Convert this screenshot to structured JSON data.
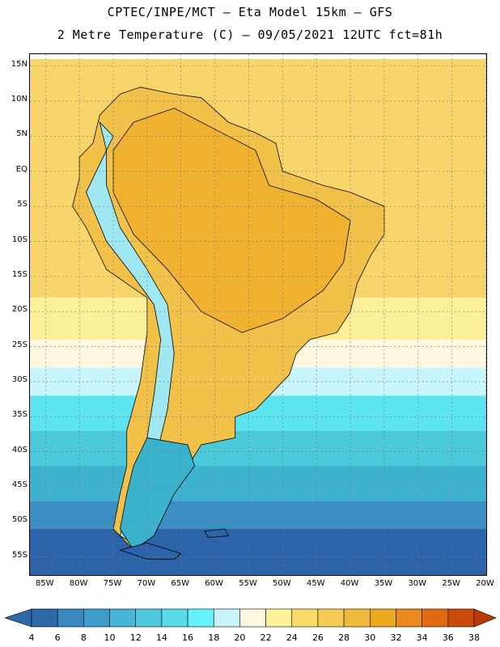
{
  "header": {
    "line1": "CPTEC/INPE/MCT –  Eta Model 15km – GFS",
    "line2": "2 Metre Temperature (C) – 09/05/2021 12UTC fct=81h"
  },
  "map": {
    "lat_labels": [
      "15N",
      "10N",
      "5N",
      "EQ",
      "5S",
      "10S",
      "15S",
      "20S",
      "25S",
      "30S",
      "35S",
      "40S",
      "45S",
      "50S",
      "55S"
    ],
    "lon_labels": [
      "85W",
      "80W",
      "75W",
      "70W",
      "65W",
      "60W",
      "55W",
      "50W",
      "45W",
      "40W",
      "35W",
      "30W",
      "25W",
      "20W"
    ],
    "ocean_bands": [
      {
        "lat_from": 16,
        "lat_to": -18,
        "color": "#f7d56a"
      },
      {
        "lat_from": -18,
        "lat_to": -24,
        "color": "#fcef9a"
      },
      {
        "lat_from": -24,
        "lat_to": -28,
        "color": "#fff8e0"
      },
      {
        "lat_from": -28,
        "lat_to": -32,
        "color": "#c8f4fb"
      },
      {
        "lat_from": -32,
        "lat_to": -37,
        "color": "#5ce5f0"
      },
      {
        "lat_from": -37,
        "lat_to": -42,
        "color": "#4cc9da"
      },
      {
        "lat_from": -42,
        "lat_to": -47,
        "color": "#3eb3cf"
      },
      {
        "lat_from": -47,
        "lat_to": -51,
        "color": "#3b8fc2"
      },
      {
        "lat_from": -51,
        "lat_to": -58,
        "color": "#2d63a8"
      }
    ],
    "colors": {
      "land_hot": "#f0b030",
      "land_warm": "#f2c14a",
      "andes_cool": "#9fe8f2",
      "patagonia": "#3bb2cc",
      "border": "#000000"
    }
  },
  "colorbar": {
    "labels": [
      "4",
      "6",
      "8",
      "10",
      "12",
      "14",
      "16",
      "18",
      "20",
      "22",
      "24",
      "26",
      "28",
      "30",
      "32",
      "34",
      "36",
      "38"
    ],
    "colors": [
      "#2e6aa8",
      "#3a86bf",
      "#3f9dcc",
      "#47b5d6",
      "#52c8de",
      "#5adbe8",
      "#66f2fa",
      "#c9f4fb",
      "#fff8e2",
      "#fdf29a",
      "#f8dd6a",
      "#f3cb55",
      "#efb93c",
      "#ecaa1f",
      "#e88a1f",
      "#e06a10",
      "#cc4a08"
    ],
    "end_left": "#2e6aa8",
    "end_right": "#b83a05"
  }
}
